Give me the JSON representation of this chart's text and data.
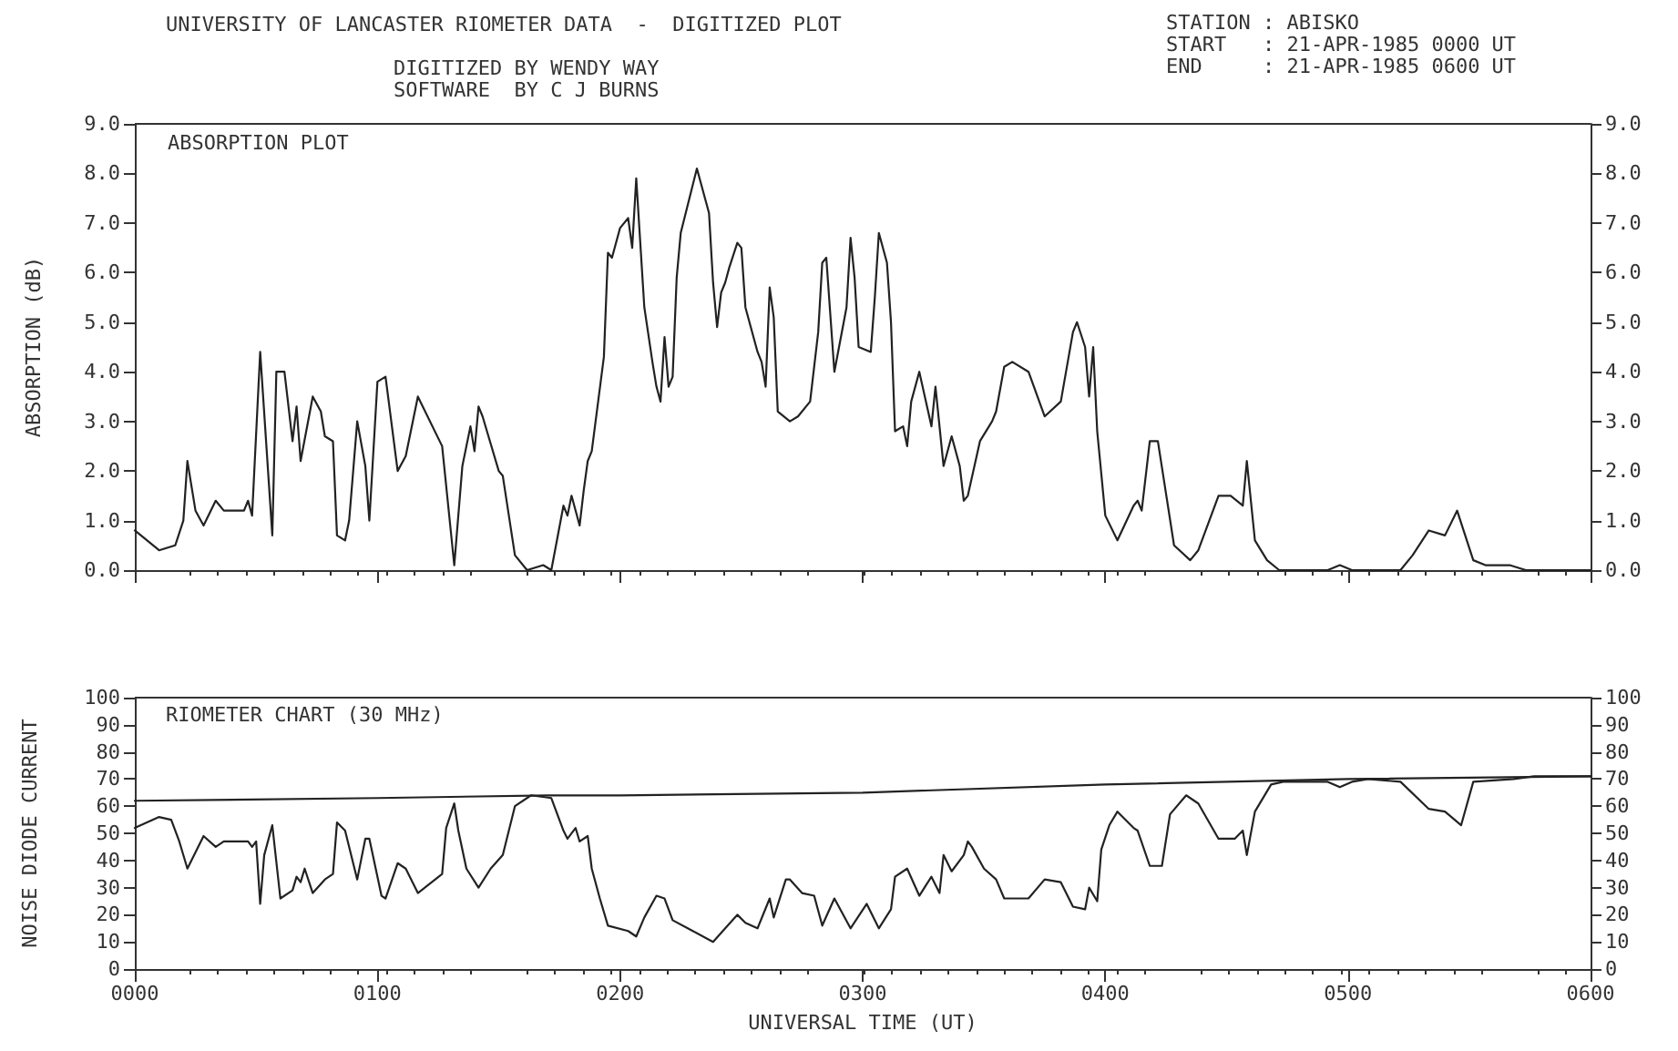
{
  "chart_data": [
    {
      "type": "line",
      "title": "UNIVERSITY OF LANCASTER RIOMETER DATA  -  DIGITIZED PLOT",
      "subtitle": "DIGITIZED BY WENDY WAY",
      "ylabel": "ABSORPTION (dB)",
      "annotations": [
        "SOFTWARE  BY C J BURNS",
        "STATION : ABISKO",
        "START   : 21-APR-1985 0000 UT",
        "END     : 21-APR-1985 0600 UT",
        "ABSORPTION PLOT"
      ],
      "series": [
        {
          "color": "#222222",
          "x": [
            "1985-04-21T00:00",
            "1985-04-21T00:06",
            "1985-04-21T00:10",
            "1985-04-21T00:12",
            "1985-04-21T00:13",
            "1985-04-21T00:15",
            "1985-04-21T00:17",
            "1985-04-21T00:20",
            "1985-04-21T00:22",
            "1985-04-21T00:27",
            "1985-04-21T00:28",
            "1985-04-21T00:29",
            "1985-04-21T00:31",
            "1985-04-21T00:34",
            "1985-04-21T00:35",
            "1985-04-21T00:37",
            "1985-04-21T00:39",
            "1985-04-21T00:40",
            "1985-04-21T00:41",
            "1985-04-21T00:44",
            "1985-04-21T00:46",
            "1985-04-21T00:47",
            "1985-04-21T00:49",
            "1985-04-21T00:50",
            "1985-04-21T00:52",
            "1985-04-21T00:53",
            "1985-04-21T00:55",
            "1985-04-21T00:57",
            "1985-04-21T00:58",
            "1985-04-21T01:00",
            "1985-04-21T01:02",
            "1985-04-21T01:05",
            "1985-04-21T01:07",
            "1985-04-21T01:10",
            "1985-04-21T01:16",
            "1985-04-21T01:18",
            "1985-04-21T01:19",
            "1985-04-21T01:21",
            "1985-04-21T01:23",
            "1985-04-21T01:24",
            "1985-04-21T01:25",
            "1985-04-21T01:26",
            "1985-04-21T01:30",
            "1985-04-21T01:31",
            "1985-04-21T01:34",
            "1985-04-21T01:37",
            "1985-04-21T01:41",
            "1985-04-21T01:43",
            "1985-04-21T01:46",
            "1985-04-21T01:47",
            "1985-04-21T01:48",
            "1985-04-21T01:50",
            "1985-04-21T01:51",
            "1985-04-21T01:52",
            "1985-04-21T01:53",
            "1985-04-21T01:56",
            "1985-04-21T01:57",
            "1985-04-21T01:58",
            "1985-04-21T02:00",
            "1985-04-21T02:02",
            "1985-04-21T02:03",
            "1985-04-21T02:04",
            "1985-04-21T02:06",
            "1985-04-21T02:08",
            "1985-04-21T02:09",
            "1985-04-21T02:10",
            "1985-04-21T02:11",
            "1985-04-21T02:12",
            "1985-04-21T02:13",
            "1985-04-21T02:14",
            "1985-04-21T02:15",
            "1985-04-21T02:19",
            "1985-04-21T02:22",
            "1985-04-21T02:23",
            "1985-04-21T02:24",
            "1985-04-21T02:25",
            "1985-04-21T02:26",
            "1985-04-21T02:27",
            "1985-04-21T02:29",
            "1985-04-21T02:30",
            "1985-04-21T02:31",
            "1985-04-21T02:34",
            "1985-04-21T02:35",
            "1985-04-21T02:36",
            "1985-04-21T02:37",
            "1985-04-21T02:38",
            "1985-04-21T02:39",
            "1985-04-21T02:42",
            "1985-04-21T02:44",
            "1985-04-21T02:47",
            "1985-04-21T02:49",
            "1985-04-21T02:50",
            "1985-04-21T02:51",
            "1985-04-21T02:53",
            "1985-04-21T02:56",
            "1985-04-21T02:57",
            "1985-04-21T02:58",
            "1985-04-21T02:59",
            "1985-04-21T03:02",
            "1985-04-21T03:03",
            "1985-04-21T03:04",
            "1985-04-21T03:06",
            "1985-04-21T03:07",
            "1985-04-21T03:08",
            "1985-04-21T03:10",
            "1985-04-21T03:11",
            "1985-04-21T03:12",
            "1985-04-21T03:14",
            "1985-04-21T03:17",
            "1985-04-21T03:18",
            "1985-04-21T03:20",
            "1985-04-21T03:22",
            "1985-04-21T03:24",
            "1985-04-21T03:25",
            "1985-04-21T03:26",
            "1985-04-21T03:29",
            "1985-04-21T03:32",
            "1985-04-21T03:33",
            "1985-04-21T03:35",
            "1985-04-21T03:37",
            "1985-04-21T03:41",
            "1985-04-21T03:45",
            "1985-04-21T03:49",
            "1985-04-21T03:52",
            "1985-04-21T03:53",
            "1985-04-21T03:55",
            "1985-04-21T03:56",
            "1985-04-21T03:57",
            "1985-04-21T03:58",
            "1985-04-21T04:00",
            "1985-04-21T04:03",
            "1985-04-21T04:07",
            "1985-04-21T04:08",
            "1985-04-21T04:09",
            "1985-04-21T04:11",
            "1985-04-21T04:13",
            "1985-04-21T04:17",
            "1985-04-21T04:21",
            "1985-04-21T04:23",
            "1985-04-21T04:28",
            "1985-04-21T04:31",
            "1985-04-21T04:34",
            "1985-04-21T04:35",
            "1985-04-21T04:37",
            "1985-04-21T04:40",
            "1985-04-21T04:43",
            "1985-04-21T04:55",
            "1985-04-21T04:58",
            "1985-04-21T05:01",
            "1985-04-21T05:13",
            "1985-04-21T05:16",
            "1985-04-21T05:20",
            "1985-04-21T05:24",
            "1985-04-21T05:27",
            "1985-04-21T05:31",
            "1985-04-21T05:34",
            "1985-04-21T05:40",
            "1985-04-21T05:44",
            "1985-04-21T06:00"
          ],
          "values": [
            0.8,
            0.4,
            0.5,
            1.0,
            2.2,
            1.2,
            0.9,
            1.4,
            1.2,
            1.2,
            1.4,
            1.1,
            4.4,
            0.7,
            4.0,
            4.0,
            2.6,
            3.3,
            2.2,
            3.5,
            3.2,
            2.7,
            2.6,
            0.7,
            0.6,
            1.0,
            3.0,
            2.1,
            1.0,
            3.8,
            3.9,
            2.0,
            2.3,
            3.5,
            2.5,
            0.9,
            0.1,
            2.1,
            2.9,
            2.4,
            3.3,
            3.1,
            2.0,
            1.9,
            0.3,
            0.0,
            0.1,
            0.0,
            1.3,
            1.1,
            1.5,
            0.9,
            1.6,
            2.2,
            2.4,
            4.3,
            6.4,
            6.3,
            6.9,
            7.1,
            6.5,
            7.9,
            5.3,
            4.2,
            3.7,
            3.4,
            4.7,
            3.7,
            3.9,
            5.9,
            6.8,
            8.1,
            7.2,
            5.8,
            4.9,
            5.6,
            5.8,
            6.1,
            6.6,
            6.5,
            5.3,
            4.4,
            4.2,
            3.7,
            5.7,
            5.1,
            3.2,
            3.0,
            3.1,
            3.4,
            4.8,
            6.2,
            6.3,
            4.0,
            5.3,
            6.7,
            5.9,
            4.5,
            4.4,
            5.5,
            6.8,
            6.2,
            5.0,
            2.8,
            2.9,
            2.5,
            3.4,
            4.0,
            2.9,
            3.7,
            2.1,
            2.7,
            2.1,
            1.4,
            1.5,
            2.6,
            3.0,
            3.2,
            4.1,
            4.2,
            4.0,
            3.1,
            3.4,
            4.8,
            5.0,
            4.5,
            3.5,
            4.5,
            2.8,
            1.1,
            0.6,
            1.3,
            1.4,
            1.2,
            2.6,
            2.6,
            0.5,
            0.2,
            0.4,
            1.5,
            1.5,
            1.3,
            2.2,
            0.6,
            0.2,
            0.0,
            0.0,
            0.1,
            0.0,
            0.0,
            0.3,
            0.8,
            0.7,
            1.2,
            0.2,
            0.1,
            0.1,
            0.0,
            0.0
          ]
        }
      ],
      "xlim": [
        "1985-04-21T00:00",
        "1985-04-21T06:00"
      ],
      "xticks": [
        {
          "value": "1985-04-21T00:00",
          "label": null
        },
        {
          "value": "1985-04-21T01:00",
          "label": null
        },
        {
          "value": "1985-04-21T02:00",
          "label": null
        },
        {
          "value": "1985-04-21T03:00",
          "label": null
        },
        {
          "value": "1985-04-21T04:00",
          "label": null
        },
        {
          "value": "1985-04-21T05:00",
          "label": null
        },
        {
          "value": "1985-04-21T06:00",
          "label": null
        }
      ],
      "ylim": [
        0,
        9
      ],
      "yticks": [
        {
          "value": 0,
          "label": "0.0"
        },
        {
          "value": 1,
          "label": "1.0"
        },
        {
          "value": 2,
          "label": "2.0"
        },
        {
          "value": 3,
          "label": "3.0"
        },
        {
          "value": 4,
          "label": "4.0"
        },
        {
          "value": 5,
          "label": "5.0"
        },
        {
          "value": 6,
          "label": "6.0"
        },
        {
          "value": 7,
          "label": "7.0"
        },
        {
          "value": 8,
          "label": "8.0"
        },
        {
          "value": 9,
          "label": "9.0"
        }
      ],
      "y2lim": [
        0,
        9
      ],
      "y2ticks": [
        {
          "value": 0,
          "label": "0.0"
        },
        {
          "value": 1,
          "label": "1.0"
        },
        {
          "value": 2,
          "label": "2.0"
        },
        {
          "value": 3,
          "label": "3.0"
        },
        {
          "value": 4,
          "label": "4.0"
        },
        {
          "value": 5,
          "label": "5.0"
        },
        {
          "value": 6,
          "label": "6.0"
        },
        {
          "value": 7,
          "label": "7.0"
        },
        {
          "value": 8,
          "label": "8.0"
        },
        {
          "value": 9,
          "label": "9.0"
        }
      ],
      "tick_labels": "y",
      "marker": "none",
      "line_style": "solid"
    },
    {
      "type": "line",
      "title": "RIOMETER CHART (30 MHz)",
      "xlabel": "UNIVERSAL TIME (UT)",
      "ylabel": "NOISE DIODE CURRENT",
      "series": [
        {
          "color": "#222222",
          "x": [
            "1985-04-21T00:00",
            "1985-04-21T01:00",
            "1985-04-21T01:42",
            "1985-04-21T02:00",
            "1985-04-21T03:00",
            "1985-04-21T04:00",
            "1985-04-21T05:00",
            "1985-04-21T06:00"
          ],
          "values": [
            62,
            63,
            64,
            64,
            65,
            68,
            70,
            71
          ]
        },
        {
          "color": "#222222",
          "x": [
            "1985-04-21T00:00",
            "1985-04-21T00:06",
            "1985-04-21T00:09",
            "1985-04-21T00:11",
            "1985-04-21T00:13",
            "1985-04-21T00:17",
            "1985-04-21T00:20",
            "1985-04-21T00:22",
            "1985-04-21T00:28",
            "1985-04-21T00:29",
            "1985-04-21T00:30",
            "1985-04-21T00:31",
            "1985-04-21T00:32",
            "1985-04-21T00:34",
            "1985-04-21T00:36",
            "1985-04-21T00:39",
            "1985-04-21T00:40",
            "1985-04-21T00:41",
            "1985-04-21T00:42",
            "1985-04-21T00:44",
            "1985-04-21T00:47",
            "1985-04-21T00:49",
            "1985-04-21T00:50",
            "1985-04-21T00:52",
            "1985-04-21T00:55",
            "1985-04-21T00:57",
            "1985-04-21T00:58",
            "1985-04-21T01:01",
            "1985-04-21T01:02",
            "1985-04-21T01:05",
            "1985-04-21T01:07",
            "1985-04-21T01:10",
            "1985-04-21T01:16",
            "1985-04-21T01:17",
            "1985-04-21T01:19",
            "1985-04-21T01:20",
            "1985-04-21T01:22",
            "1985-04-21T01:25",
            "1985-04-21T01:28",
            "1985-04-21T01:31",
            "1985-04-21T01:34",
            "1985-04-21T01:38",
            "1985-04-21T01:43",
            "1985-04-21T01:46",
            "1985-04-21T01:47",
            "1985-04-21T01:49",
            "1985-04-21T01:50",
            "1985-04-21T01:52",
            "1985-04-21T01:53",
            "1985-04-21T01:55",
            "1985-04-21T01:57",
            "1985-04-21T02:02",
            "1985-04-21T02:04",
            "1985-04-21T02:06",
            "1985-04-21T02:09",
            "1985-04-21T02:11",
            "1985-04-21T02:13",
            "1985-04-21T02:18",
            "1985-04-21T02:23",
            "1985-04-21T02:29",
            "1985-04-21T02:31",
            "1985-04-21T02:34",
            "1985-04-21T02:37",
            "1985-04-21T02:38",
            "1985-04-21T02:41",
            "1985-04-21T02:42",
            "1985-04-21T02:45",
            "1985-04-21T02:48",
            "1985-04-21T02:50",
            "1985-04-21T02:53",
            "1985-04-21T02:57",
            "1985-04-21T03:01",
            "1985-04-21T03:04",
            "1985-04-21T03:07",
            "1985-04-21T03:08",
            "1985-04-21T03:11",
            "1985-04-21T03:14",
            "1985-04-21T03:17",
            "1985-04-21T03:19",
            "1985-04-21T03:20",
            "1985-04-21T03:22",
            "1985-04-21T03:25",
            "1985-04-21T03:26",
            "1985-04-21T03:27",
            "1985-04-21T03:30",
            "1985-04-21T03:33",
            "1985-04-21T03:35",
            "1985-04-21T03:41",
            "1985-04-21T03:45",
            "1985-04-21T03:49",
            "1985-04-21T03:52",
            "1985-04-21T03:55",
            "1985-04-21T03:56",
            "1985-04-21T03:58",
            "1985-04-21T03:59",
            "1985-04-21T04:01",
            "1985-04-21T04:03",
            "1985-04-21T04:07",
            "1985-04-21T04:08",
            "1985-04-21T04:11",
            "1985-04-21T04:14",
            "1985-04-21T04:16",
            "1985-04-21T04:20",
            "1985-04-21T04:23",
            "1985-04-21T04:28",
            "1985-04-21T04:32",
            "1985-04-21T04:34",
            "1985-04-21T04:35",
            "1985-04-21T04:37",
            "1985-04-21T04:41",
            "1985-04-21T04:44",
            "1985-04-21T04:55",
            "1985-04-21T04:58",
            "1985-04-21T05:01",
            "1985-04-21T05:05",
            "1985-04-21T05:13",
            "1985-04-21T05:20",
            "1985-04-21T05:24",
            "1985-04-21T05:28",
            "1985-04-21T05:31",
            "1985-04-21T05:41",
            "1985-04-21T05:46",
            "1985-04-21T06:00"
          ],
          "values": [
            52,
            56,
            55,
            47,
            37,
            49,
            45,
            47,
            47,
            45,
            47,
            24,
            42,
            53,
            26,
            29,
            34,
            32,
            37,
            28,
            33,
            35,
            54,
            51,
            33,
            48,
            48,
            27,
            26,
            39,
            37,
            28,
            35,
            52,
            61,
            51,
            37,
            30,
            37,
            42,
            60,
            64,
            63,
            51,
            48,
            52,
            47,
            49,
            37,
            26,
            16,
            14,
            12,
            19,
            27,
            26,
            18,
            14,
            10,
            20,
            17,
            15,
            26,
            19,
            33,
            33,
            28,
            27,
            16,
            26,
            15,
            24,
            15,
            22,
            34,
            37,
            27,
            34,
            28,
            42,
            36,
            42,
            47,
            45,
            37,
            33,
            26,
            26,
            33,
            32,
            23,
            22,
            30,
            25,
            44,
            53,
            58,
            52,
            51,
            38,
            38,
            57,
            64,
            61,
            48,
            48,
            51,
            42,
            58,
            68,
            69,
            69,
            67,
            69,
            70,
            69,
            59,
            58,
            53,
            69,
            70,
            71,
            71
          ]
        }
      ],
      "xlim": [
        "1985-04-21T00:00",
        "1985-04-21T06:00"
      ],
      "xticks": [
        {
          "value": "1985-04-21T00:00",
          "label": "0000"
        },
        {
          "value": "1985-04-21T01:00",
          "label": "0100"
        },
        {
          "value": "1985-04-21T02:00",
          "label": "0200"
        },
        {
          "value": "1985-04-21T03:00",
          "label": "0300"
        },
        {
          "value": "1985-04-21T04:00",
          "label": "0400"
        },
        {
          "value": "1985-04-21T05:00",
          "label": "0500"
        },
        {
          "value": "1985-04-21T06:00",
          "label": "0600"
        }
      ],
      "ylim": [
        0,
        100
      ],
      "yticks": [
        0,
        10,
        20,
        30,
        40,
        50,
        60,
        70,
        80,
        90,
        100
      ],
      "y2lim": [
        0,
        100
      ],
      "y2ticks": [
        0,
        10,
        20,
        30,
        40,
        50,
        60,
        70,
        80,
        90,
        100
      ],
      "marker": "none",
      "line_style": "solid"
    }
  ]
}
